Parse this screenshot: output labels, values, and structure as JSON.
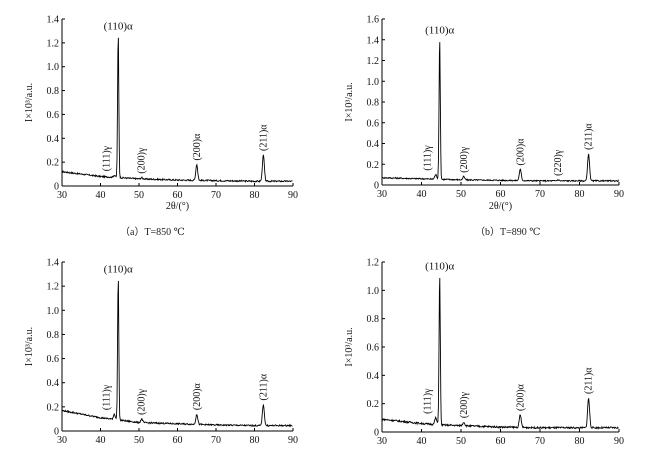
{
  "chart_data": [
    {
      "type": "line",
      "caption": "（a）T=850 ℃",
      "xlabel": "2θ/(°)",
      "ylabel": "I×10³/a.u.",
      "xlim": [
        30,
        90
      ],
      "ylim": [
        0,
        1.4
      ],
      "xticks": [
        "30",
        "40",
        "50",
        "60",
        "70",
        "80",
        "90"
      ],
      "yticks": [
        "0",
        "0.2",
        "0.4",
        "0.6",
        "0.8",
        "1.0",
        "1.2",
        "1.4"
      ],
      "baseline": [
        [
          30,
          0.12
        ],
        [
          35,
          0.1
        ],
        [
          40,
          0.08
        ],
        [
          45,
          0.07
        ],
        [
          50,
          0.06
        ],
        [
          60,
          0.05
        ],
        [
          70,
          0.045
        ],
        [
          80,
          0.04
        ],
        [
          90,
          0.04
        ]
      ],
      "peaks": [
        {
          "x": 43.6,
          "y": 0.09,
          "label": "(111)γ"
        },
        {
          "x": 44.6,
          "y": 1.28,
          "label": "(110)α"
        },
        {
          "x": 50.7,
          "y": 0.07,
          "label": "(200)γ"
        },
        {
          "x": 65.0,
          "y": 0.18,
          "label": "(200)α"
        },
        {
          "x": 82.3,
          "y": 0.26,
          "label": "(211)α"
        }
      ]
    },
    {
      "type": "line",
      "caption": "（b）T=890 ℃",
      "xlabel": "2θ/(°)",
      "ylabel": "I×10³/a.u.",
      "xlim": [
        30,
        90
      ],
      "ylim": [
        0,
        1.6
      ],
      "xticks": [
        "30",
        "40",
        "50",
        "60",
        "70",
        "80",
        "90"
      ],
      "yticks": [
        "0",
        "0.2",
        "0.4",
        "0.6",
        "0.8",
        "1.0",
        "1.2",
        "1.4",
        "1.6"
      ],
      "baseline": [
        [
          30,
          0.07
        ],
        [
          40,
          0.06
        ],
        [
          50,
          0.05
        ],
        [
          60,
          0.045
        ],
        [
          70,
          0.04
        ],
        [
          80,
          0.04
        ],
        [
          90,
          0.04
        ]
      ],
      "peaks": [
        {
          "x": 43.6,
          "y": 0.1,
          "label": "(111)γ"
        },
        {
          "x": 44.6,
          "y": 1.42,
          "label": "(110)α"
        },
        {
          "x": 50.7,
          "y": 0.08,
          "label": "(200)γ"
        },
        {
          "x": 65.0,
          "y": 0.15,
          "label": "(200)α"
        },
        {
          "x": 74.6,
          "y": 0.05,
          "label": "(220)γ"
        },
        {
          "x": 82.3,
          "y": 0.3,
          "label": "(211)α"
        }
      ]
    },
    {
      "type": "line",
      "caption": "",
      "xlabel": "",
      "ylabel": "I×10³/a.u.",
      "xlim": [
        30,
        90
      ],
      "ylim": [
        0,
        1.4
      ],
      "xticks": [
        "30",
        "40",
        "50",
        "60",
        "70",
        "80",
        "90"
      ],
      "yticks": [
        "0",
        "0.2",
        "0.4",
        "0.6",
        "0.8",
        "1.0",
        "1.2",
        "1.4"
      ],
      "baseline": [
        [
          30,
          0.17
        ],
        [
          35,
          0.14
        ],
        [
          40,
          0.11
        ],
        [
          45,
          0.09
        ],
        [
          50,
          0.07
        ],
        [
          60,
          0.06
        ],
        [
          70,
          0.05
        ],
        [
          80,
          0.045
        ],
        [
          90,
          0.045
        ]
      ],
      "peaks": [
        {
          "x": 43.6,
          "y": 0.14,
          "label": "(111)γ"
        },
        {
          "x": 44.6,
          "y": 1.28,
          "label": "(110)α"
        },
        {
          "x": 50.7,
          "y": 0.1,
          "label": "(200)γ"
        },
        {
          "x": 65.0,
          "y": 0.14,
          "label": "(200)α"
        },
        {
          "x": 82.3,
          "y": 0.22,
          "label": "(211)α"
        }
      ]
    },
    {
      "type": "line",
      "caption": "",
      "xlabel": "",
      "ylabel": "I×10³/a.u.",
      "xlim": [
        30,
        90
      ],
      "ylim": [
        0,
        1.2
      ],
      "xticks": [
        "30",
        "40",
        "50",
        "60",
        "70",
        "80",
        "90"
      ],
      "yticks": [
        "0",
        "0.2",
        "0.4",
        "0.6",
        "0.8",
        "1.0",
        "1.2"
      ],
      "baseline": [
        [
          30,
          0.09
        ],
        [
          35,
          0.075
        ],
        [
          40,
          0.06
        ],
        [
          45,
          0.05
        ],
        [
          50,
          0.045
        ],
        [
          60,
          0.035
        ],
        [
          70,
          0.03
        ],
        [
          80,
          0.03
        ],
        [
          90,
          0.03
        ]
      ],
      "peaks": [
        {
          "x": 43.6,
          "y": 0.1,
          "label": "(111)γ"
        },
        {
          "x": 44.6,
          "y": 1.12,
          "label": "(110)α"
        },
        {
          "x": 50.7,
          "y": 0.07,
          "label": "(200)γ"
        },
        {
          "x": 65.0,
          "y": 0.12,
          "label": "(200)α"
        },
        {
          "x": 82.3,
          "y": 0.24,
          "label": "(211)α"
        }
      ]
    }
  ]
}
